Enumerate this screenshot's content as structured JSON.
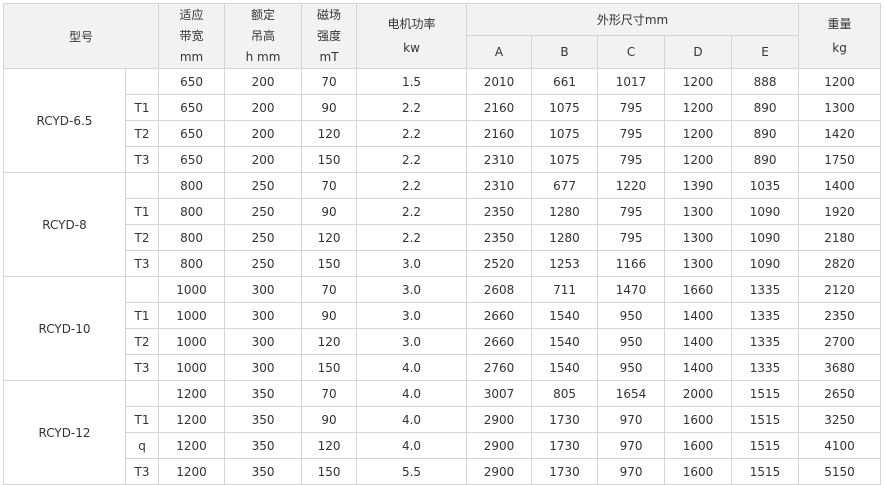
{
  "header": {
    "model": "型号",
    "belt_width": [
      "适应",
      "带宽",
      "mm"
    ],
    "lift_height": [
      "额定",
      "吊高",
      "h mm"
    ],
    "field_strength": [
      "磁场",
      "强度",
      "mT"
    ],
    "motor_power": [
      "电机功率",
      "kw"
    ],
    "dimensions": "外形尺寸mm",
    "dim_cols": [
      "A",
      "B",
      "C",
      "D",
      "E"
    ],
    "weight": [
      "重量",
      "kg"
    ]
  },
  "groups": [
    {
      "model": "RCYD-6.5",
      "rows": [
        [
          "",
          "650",
          "200",
          "70",
          "1.5",
          "2010",
          "661",
          "1017",
          "1200",
          "888",
          "1200"
        ],
        [
          "T1",
          "650",
          "200",
          "90",
          "2.2",
          "2160",
          "1075",
          "795",
          "1200",
          "890",
          "1300"
        ],
        [
          "T2",
          "650",
          "200",
          "120",
          "2.2",
          "2160",
          "1075",
          "795",
          "1200",
          "890",
          "1420"
        ],
        [
          "T3",
          "650",
          "200",
          "150",
          "2.2",
          "2310",
          "1075",
          "795",
          "1200",
          "890",
          "1750"
        ]
      ]
    },
    {
      "model": "RCYD-8",
      "rows": [
        [
          "",
          "800",
          "250",
          "70",
          "2.2",
          "2310",
          "677",
          "1220",
          "1390",
          "1035",
          "1400"
        ],
        [
          "T1",
          "800",
          "250",
          "90",
          "2.2",
          "2350",
          "1280",
          "795",
          "1300",
          "1090",
          "1920"
        ],
        [
          "T2",
          "800",
          "250",
          "120",
          "2.2",
          "2350",
          "1280",
          "795",
          "1300",
          "1090",
          "2180"
        ],
        [
          "T3",
          "800",
          "250",
          "150",
          "3.0",
          "2520",
          "1253",
          "1166",
          "1300",
          "1090",
          "2820"
        ]
      ]
    },
    {
      "model": "RCYD-10",
      "rows": [
        [
          "",
          "1000",
          "300",
          "70",
          "3.0",
          "2608",
          "711",
          "1470",
          "1660",
          "1335",
          "2120"
        ],
        [
          "T1",
          "1000",
          "300",
          "90",
          "3.0",
          "2660",
          "1540",
          "950",
          "1400",
          "1335",
          "2350"
        ],
        [
          "T2",
          "1000",
          "300",
          "120",
          "3.0",
          "2660",
          "1540",
          "950",
          "1400",
          "1335",
          "2700"
        ],
        [
          "T3",
          "1000",
          "300",
          "150",
          "4.0",
          "2760",
          "1540",
          "950",
          "1400",
          "1335",
          "3680"
        ]
      ]
    },
    {
      "model": "RCYD-12",
      "rows": [
        [
          "",
          "1200",
          "350",
          "70",
          "4.0",
          "3007",
          "805",
          "1654",
          "2000",
          "1515",
          "2650"
        ],
        [
          "T1",
          "1200",
          "350",
          "90",
          "4.0",
          "2900",
          "1730",
          "970",
          "1600",
          "1515",
          "3250"
        ],
        [
          "q",
          "1200",
          "350",
          "120",
          "4.0",
          "2900",
          "1730",
          "970",
          "1600",
          "1515",
          "4100"
        ],
        [
          "T3",
          "1200",
          "350",
          "150",
          "5.5",
          "2900",
          "1730",
          "970",
          "1600",
          "1515",
          "5150"
        ]
      ]
    }
  ]
}
